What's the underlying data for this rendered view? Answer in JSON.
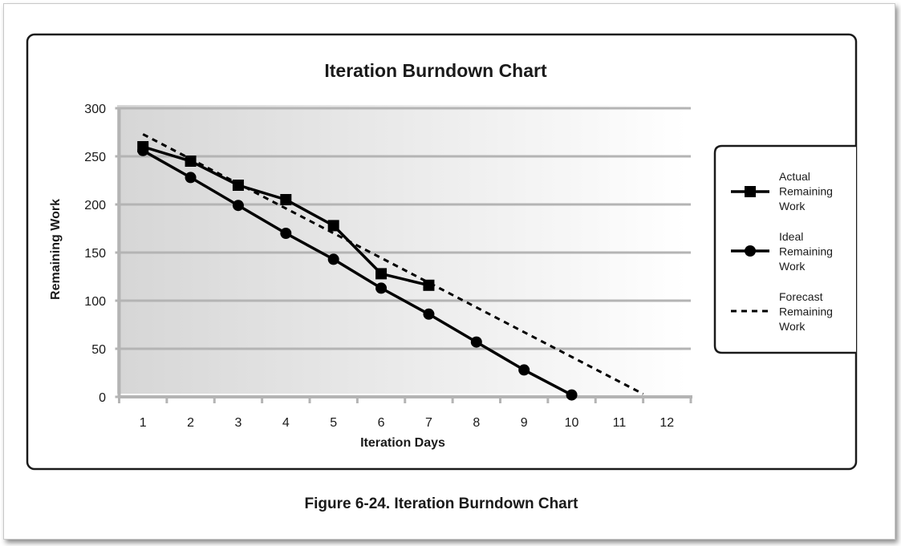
{
  "chart_data": {
    "type": "line",
    "title": "Iteration Burndown Chart",
    "xlabel": "Iteration Days",
    "ylabel": "Remaining Work",
    "x": [
      1,
      2,
      3,
      4,
      5,
      6,
      7,
      8,
      9,
      10,
      11,
      12
    ],
    "xlim": [
      0.5,
      12.5
    ],
    "ylim": [
      0,
      300
    ],
    "yticks": [
      0,
      50,
      100,
      150,
      200,
      250,
      300
    ],
    "grid": "horizontal",
    "legend_position": "right",
    "series": [
      {
        "name": "Actual Remaining Work",
        "marker": "square",
        "line": "solid",
        "x": [
          1,
          2,
          3,
          4,
          5,
          6,
          7
        ],
        "values": [
          260,
          245,
          220,
          205,
          178,
          128,
          116
        ]
      },
      {
        "name": "Ideal Remaining Work",
        "marker": "circle",
        "line": "solid",
        "x": [
          1,
          2,
          3,
          4,
          5,
          6,
          7,
          8,
          9,
          10
        ],
        "values": [
          256,
          228,
          199,
          170,
          143,
          113,
          86,
          57,
          28,
          2
        ]
      },
      {
        "name": "Forecast Remaining Work",
        "marker": "none",
        "line": "dashed",
        "x": [
          1,
          11.5
        ],
        "values": [
          273,
          3
        ]
      }
    ],
    "legend": [
      {
        "key": "actual",
        "lines": [
          "Actual",
          "Remaining",
          "Work"
        ]
      },
      {
        "key": "ideal",
        "lines": [
          "Ideal",
          "Remaining",
          "Work"
        ]
      },
      {
        "key": "forecast",
        "lines": [
          "Forecast",
          "Remaining",
          "Work"
        ]
      }
    ]
  },
  "caption": "Figure 6-24. Iteration Burndown Chart",
  "colors": {
    "line": "#000000",
    "gridline": "#b4b4b4",
    "plot_bg_left": "#d6d6d6",
    "plot_bg_right": "#ffffff",
    "frame": "#1a1a1a"
  }
}
